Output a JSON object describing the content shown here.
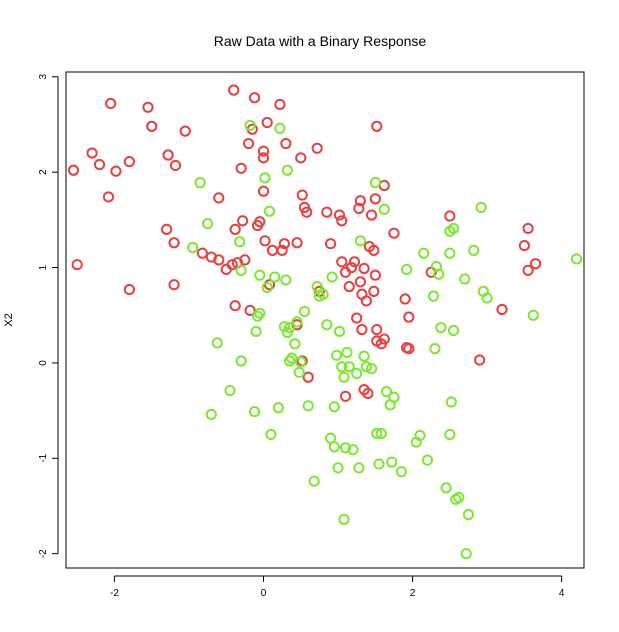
{
  "chart_data": {
    "type": "scatter",
    "title": "Raw Data with a Binary Response",
    "xlabel": "",
    "ylabel": "X2",
    "xlim": [
      -2.65,
      4.3
    ],
    "ylim": [
      -2.15,
      3.05
    ],
    "xticks": [
      -2,
      0,
      2,
      4
    ],
    "yticks": [
      -2,
      -1,
      0,
      1,
      2,
      3
    ],
    "grid": false,
    "legend": "none",
    "series": [
      {
        "color": "#e84040",
        "points": [
          [
            -2.55,
            2.02
          ],
          [
            -2.5,
            1.03
          ],
          [
            -2.3,
            2.2
          ],
          [
            -2.2,
            2.08
          ],
          [
            -2.08,
            1.74
          ],
          [
            -2.05,
            2.72
          ],
          [
            -1.98,
            2.01
          ],
          [
            -1.8,
            2.11
          ],
          [
            -1.8,
            0.77
          ],
          [
            -1.55,
            2.68
          ],
          [
            -1.5,
            2.48
          ],
          [
            -1.28,
            2.18
          ],
          [
            -1.3,
            1.4
          ],
          [
            -1.2,
            1.26
          ],
          [
            -1.18,
            2.07
          ],
          [
            -1.2,
            0.82
          ],
          [
            -1.05,
            2.43
          ],
          [
            -0.82,
            1.15
          ],
          [
            -0.7,
            1.11
          ],
          [
            -0.6,
            1.73
          ],
          [
            -0.6,
            1.08
          ],
          [
            -0.5,
            0.98
          ],
          [
            -0.42,
            1.03
          ],
          [
            -0.4,
            2.86
          ],
          [
            -0.38,
            1.4
          ],
          [
            -0.38,
            0.6
          ],
          [
            -0.35,
            1.05
          ],
          [
            -0.3,
            2.04
          ],
          [
            -0.28,
            1.49
          ],
          [
            -0.25,
            1.08
          ],
          [
            -0.2,
            2.3
          ],
          [
            -0.18,
            0.55
          ],
          [
            -0.15,
            2.45
          ],
          [
            -0.12,
            2.78
          ],
          [
            -0.08,
            1.44
          ],
          [
            -0.05,
            1.48
          ],
          [
            0.0,
            2.15
          ],
          [
            0.0,
            1.8
          ],
          [
            0.0,
            2.22
          ],
          [
            0.02,
            1.28
          ],
          [
            0.05,
            2.52
          ],
          [
            0.08,
            0.82
          ],
          [
            0.12,
            1.18
          ],
          [
            0.25,
            1.18
          ],
          [
            0.22,
            2.71
          ],
          [
            0.28,
            1.25
          ],
          [
            0.3,
            2.3
          ],
          [
            0.45,
            1.26
          ],
          [
            0.45,
            0.4
          ],
          [
            0.5,
            2.15
          ],
          [
            0.52,
            1.76
          ],
          [
            0.52,
            0.02
          ],
          [
            0.55,
            1.63
          ],
          [
            0.58,
            1.58
          ],
          [
            0.6,
            -0.15
          ],
          [
            0.72,
            2.25
          ],
          [
            0.75,
            0.75
          ],
          [
            0.85,
            1.58
          ],
          [
            0.9,
            1.25
          ],
          [
            1.02,
            1.55
          ],
          [
            1.05,
            1.06
          ],
          [
            1.05,
            1.49
          ],
          [
            1.1,
            0.95
          ],
          [
            1.1,
            -0.35
          ],
          [
            1.15,
            0.8
          ],
          [
            1.18,
            1.0
          ],
          [
            1.22,
            1.06
          ],
          [
            1.25,
            0.47
          ],
          [
            1.28,
            1.62
          ],
          [
            1.3,
            1.7
          ],
          [
            1.3,
            0.85
          ],
          [
            1.32,
            0.72
          ],
          [
            1.32,
            0.35
          ],
          [
            1.35,
            0.99
          ],
          [
            1.38,
            0.65
          ],
          [
            1.35,
            -0.28
          ],
          [
            1.4,
            -0.32
          ],
          [
            1.42,
            1.22
          ],
          [
            1.45,
            1.55
          ],
          [
            1.48,
            1.18
          ],
          [
            1.5,
            0.92
          ],
          [
            1.48,
            0.75
          ],
          [
            1.52,
            0.35
          ],
          [
            1.52,
            2.48
          ],
          [
            1.5,
            1.72
          ],
          [
            1.52,
            0.23
          ],
          [
            1.58,
            0.2
          ],
          [
            1.62,
            1.86
          ],
          [
            1.62,
            0.25
          ],
          [
            1.75,
            1.36
          ],
          [
            1.9,
            0.67
          ],
          [
            1.92,
            0.16
          ],
          [
            1.95,
            0.48
          ],
          [
            1.95,
            0.15
          ],
          [
            2.25,
            0.95
          ],
          [
            2.5,
            1.54
          ],
          [
            2.9,
            0.03
          ],
          [
            3.2,
            0.56
          ],
          [
            3.5,
            1.23
          ],
          [
            3.55,
            1.41
          ],
          [
            3.55,
            0.97
          ],
          [
            3.65,
            1.04
          ]
        ]
      },
      {
        "color": "#7ce830",
        "points": [
          [
            -0.95,
            1.21
          ],
          [
            -0.85,
            1.89
          ],
          [
            -0.75,
            1.46
          ],
          [
            -0.7,
            -0.54
          ],
          [
            -0.62,
            0.21
          ],
          [
            -0.45,
            -0.29
          ],
          [
            -0.32,
            1.27
          ],
          [
            -0.3,
            0.02
          ],
          [
            -0.3,
            0.97
          ],
          [
            -0.18,
            2.49
          ],
          [
            -0.12,
            -0.51
          ],
          [
            -0.1,
            0.33
          ],
          [
            -0.08,
            0.49
          ],
          [
            -0.05,
            0.92
          ],
          [
            -0.05,
            0.52
          ],
          [
            0.02,
            1.94
          ],
          [
            0.05,
            0.79
          ],
          [
            0.08,
            1.59
          ],
          [
            0.1,
            -0.75
          ],
          [
            0.15,
            0.9
          ],
          [
            0.2,
            -0.47
          ],
          [
            0.22,
            2.46
          ],
          [
            0.28,
            0.38
          ],
          [
            0.3,
            0.87
          ],
          [
            0.32,
            2.02
          ],
          [
            0.32,
            0.32
          ],
          [
            0.35,
            0.37
          ],
          [
            0.35,
            0.02
          ],
          [
            0.38,
            0.05
          ],
          [
            0.42,
            0.2
          ],
          [
            0.45,
            0.43
          ],
          [
            0.48,
            -0.1
          ],
          [
            0.5,
            0.01
          ],
          [
            0.55,
            0.54
          ],
          [
            0.6,
            -0.45
          ],
          [
            0.68,
            -1.24
          ],
          [
            0.72,
            0.8
          ],
          [
            0.75,
            0.7
          ],
          [
            0.8,
            0.72
          ],
          [
            0.85,
            0.4
          ],
          [
            0.9,
            -0.79
          ],
          [
            0.92,
            0.9
          ],
          [
            0.95,
            -0.88
          ],
          [
            0.95,
            -0.46
          ],
          [
            0.98,
            0.08
          ],
          [
            1.0,
            -1.1
          ],
          [
            1.02,
            0.33
          ],
          [
            1.05,
            -0.04
          ],
          [
            1.08,
            -0.15
          ],
          [
            1.1,
            -0.89
          ],
          [
            1.08,
            -1.64
          ],
          [
            1.12,
            0.11
          ],
          [
            1.15,
            -0.04
          ],
          [
            1.2,
            -0.91
          ],
          [
            1.25,
            -0.11
          ],
          [
            1.28,
            -1.1
          ],
          [
            1.3,
            1.28
          ],
          [
            1.35,
            0.07
          ],
          [
            1.38,
            -0.04
          ],
          [
            1.45,
            -0.06
          ],
          [
            1.5,
            1.89
          ],
          [
            1.52,
            -0.74
          ],
          [
            1.55,
            -1.06
          ],
          [
            1.58,
            -0.74
          ],
          [
            1.62,
            1.61
          ],
          [
            1.65,
            -0.3
          ],
          [
            1.7,
            -0.44
          ],
          [
            1.75,
            -0.36
          ],
          [
            1.72,
            -1.04
          ],
          [
            1.85,
            -1.14
          ],
          [
            1.92,
            0.98
          ],
          [
            2.05,
            -0.83
          ],
          [
            2.1,
            -0.76
          ],
          [
            2.15,
            1.15
          ],
          [
            2.2,
            -1.02
          ],
          [
            2.28,
            0.7
          ],
          [
            2.3,
            0.15
          ],
          [
            2.32,
            1.01
          ],
          [
            2.35,
            0.93
          ],
          [
            2.38,
            0.37
          ],
          [
            2.45,
            -1.31
          ],
          [
            2.5,
            1.38
          ],
          [
            2.5,
            1.15
          ],
          [
            2.5,
            -0.75
          ],
          [
            2.52,
            -0.41
          ],
          [
            2.55,
            1.41
          ],
          [
            2.55,
            0.34
          ],
          [
            2.58,
            -1.43
          ],
          [
            2.62,
            -1.41
          ],
          [
            2.7,
            0.88
          ],
          [
            2.72,
            -2.0
          ],
          [
            2.75,
            -1.59
          ],
          [
            2.82,
            1.18
          ],
          [
            2.92,
            1.63
          ],
          [
            2.95,
            0.75
          ],
          [
            3.0,
            0.68
          ],
          [
            3.62,
            0.5
          ],
          [
            4.2,
            1.09
          ]
        ]
      }
    ]
  }
}
